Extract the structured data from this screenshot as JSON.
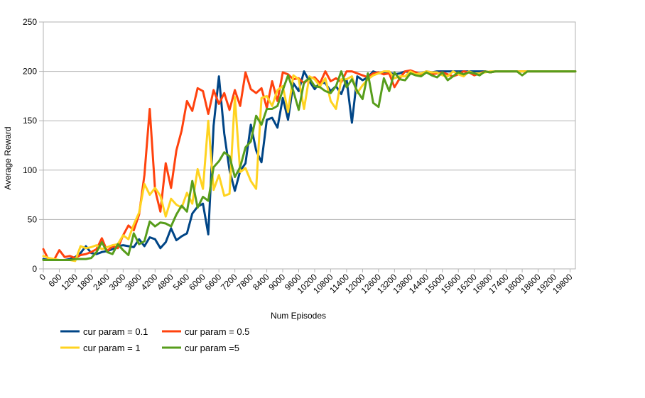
{
  "chart_data": {
    "type": "line",
    "xlabel": "Num Episodes",
    "ylabel": "Average Reward",
    "xlim": [
      0,
      20000
    ],
    "ylim": [
      0,
      250
    ],
    "yticks": [
      0,
      50,
      100,
      150,
      200,
      250
    ],
    "xticks": [
      0,
      600,
      1200,
      1800,
      2400,
      3000,
      3600,
      4200,
      4800,
      5400,
      6000,
      6600,
      7200,
      7800,
      8400,
      9000,
      9600,
      10200,
      10800,
      11400,
      12000,
      12600,
      13200,
      13800,
      14400,
      15000,
      15600,
      16200,
      16800,
      17400,
      18000,
      18600,
      19200,
      19800
    ],
    "grid": "horizontal",
    "legend": "bottom-left",
    "x": [
      0,
      200,
      400,
      600,
      800,
      1000,
      1200,
      1400,
      1600,
      1800,
      2000,
      2200,
      2400,
      2600,
      2800,
      3000,
      3200,
      3400,
      3600,
      3800,
      4000,
      4200,
      4400,
      4600,
      4800,
      5000,
      5200,
      5400,
      5600,
      5800,
      6000,
      6200,
      6400,
      6600,
      6800,
      7000,
      7200,
      7400,
      7600,
      7800,
      8000,
      8200,
      8400,
      8600,
      8800,
      9000,
      9200,
      9400,
      9600,
      9800,
      10000,
      10200,
      10400,
      10600,
      10800,
      11000,
      11200,
      11400,
      11600,
      11800,
      12000,
      12200,
      12400,
      12600,
      12800,
      13000,
      13200,
      13400,
      13600,
      13800,
      14000,
      14200,
      14400,
      14600,
      14800,
      15000,
      15200,
      15400,
      15600,
      15800,
      16000,
      16200,
      16400,
      16600,
      16800,
      17000,
      17200,
      17400,
      17600,
      17800,
      18000,
      18200,
      18400,
      18600,
      18800,
      19000,
      19200,
      19400,
      19600,
      19800,
      20000
    ],
    "series": [
      {
        "name": "cur param = 0.1",
        "color": "#004586",
        "values": [
          10,
          9,
          9,
          9,
          9,
          10,
          12,
          16,
          23,
          16,
          15,
          17,
          18,
          20,
          23,
          24,
          23,
          22,
          30,
          23,
          32,
          30,
          21,
          27,
          41,
          29,
          33,
          36,
          56,
          63,
          66,
          35,
          145,
          195,
          137,
          100,
          79,
          99,
          107,
          146,
          120,
          108,
          151,
          153,
          143,
          173,
          151,
          188,
          180,
          200,
          190,
          182,
          189,
          188,
          180,
          185,
          177,
          192,
          148,
          195,
          191,
          194,
          200,
          198,
          199,
          199,
          197,
          198,
          200,
          199,
          198,
          198,
          200,
          199,
          200,
          200,
          200,
          200,
          200,
          200,
          200,
          200,
          200,
          200,
          199,
          200,
          200,
          200,
          200,
          200,
          200,
          200,
          200,
          200,
          200,
          200,
          200,
          200,
          200,
          200,
          200
        ]
      },
      {
        "name": "cur param = 0.5",
        "color": "#ff420e",
        "values": [
          20,
          9,
          9,
          19,
          12,
          13,
          11,
          14,
          15,
          17,
          20,
          31,
          18,
          23,
          21,
          34,
          44,
          39,
          55,
          95,
          162,
          80,
          58,
          107,
          82,
          120,
          140,
          170,
          160,
          183,
          180,
          157,
          181,
          167,
          178,
          161,
          181,
          165,
          199,
          182,
          178,
          183,
          163,
          190,
          170,
          199,
          197,
          192,
          193,
          188,
          193,
          194,
          188,
          200,
          190,
          193,
          189,
          200,
          200,
          198,
          196,
          194,
          198,
          199,
          197,
          198,
          184,
          193,
          200,
          201,
          199,
          197,
          200,
          197,
          198,
          199,
          197,
          195,
          197,
          200,
          199,
          196,
          198,
          200,
          199,
          200,
          200,
          200,
          200,
          200,
          200,
          200,
          200,
          200,
          200,
          200,
          200,
          200,
          200,
          200,
          200
        ]
      },
      {
        "name": "cur param = 1",
        "color": "#ffd320",
        "values": [
          13,
          11,
          10,
          9,
          9,
          9,
          8,
          23,
          21,
          22,
          24,
          20,
          22,
          24,
          25,
          34,
          30,
          45,
          57,
          86,
          75,
          82,
          74,
          53,
          71,
          65,
          62,
          77,
          66,
          101,
          81,
          150,
          80,
          95,
          74,
          76,
          174,
          98,
          102,
          89,
          81,
          173,
          175,
          165,
          181,
          185,
          159,
          196,
          192,
          162,
          195,
          192,
          185,
          193,
          170,
          162,
          192,
          192,
          195,
          178,
          186,
          192,
          196,
          198,
          200,
          200,
          193,
          195,
          195,
          200,
          197,
          198,
          200,
          199,
          199,
          196,
          195,
          200,
          197,
          195,
          200,
          198,
          198,
          199,
          200,
          200,
          200,
          200,
          200,
          200,
          200,
          200,
          200,
          200,
          200,
          200,
          200,
          200,
          200,
          200,
          200
        ]
      },
      {
        "name": "cur param =5",
        "color": "#579d1c",
        "values": [
          9,
          9,
          9,
          9,
          9,
          9,
          10,
          10,
          10,
          11,
          17,
          27,
          17,
          15,
          25,
          19,
          14,
          36,
          25,
          28,
          48,
          43,
          47,
          46,
          43,
          55,
          64,
          58,
          89,
          62,
          73,
          69,
          103,
          109,
          118,
          114,
          93,
          103,
          123,
          129,
          155,
          146,
          162,
          162,
          165,
          181,
          196,
          180,
          161,
          189,
          193,
          185,
          184,
          180,
          178,
          185,
          200,
          184,
          192,
          180,
          172,
          198,
          168,
          164,
          193,
          180,
          199,
          192,
          191,
          198,
          196,
          195,
          199,
          196,
          194,
          199,
          191,
          195,
          199,
          197,
          199,
          198,
          196,
          200,
          199,
          200,
          200,
          200,
          200,
          200,
          196,
          200,
          200,
          200,
          200,
          200,
          200,
          200,
          200,
          200,
          200
        ]
      }
    ]
  }
}
